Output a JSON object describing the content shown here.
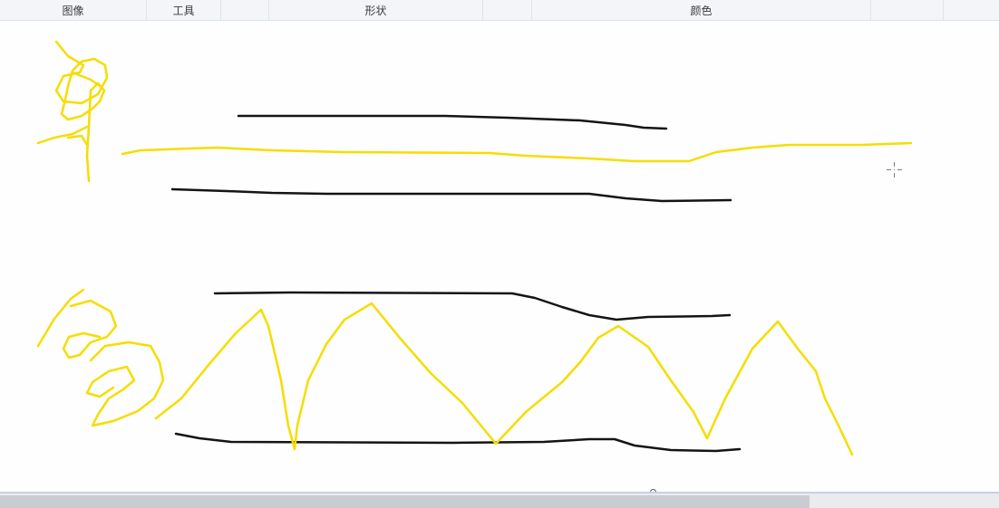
{
  "ribbon": {
    "groups": [
      "图像",
      "工具",
      "形状",
      "颜色"
    ]
  },
  "canvas": {
    "stroke_colors": {
      "pencil_black": "#141414",
      "pencil_yellow": "#f6dd00"
    }
  },
  "colors": {
    "ribbon_bg": "#f3f5f8",
    "canvas_bg": "#fdfefd",
    "scroll_track": "#e9ebee",
    "scroll_thumb": "#c9ccd1"
  }
}
